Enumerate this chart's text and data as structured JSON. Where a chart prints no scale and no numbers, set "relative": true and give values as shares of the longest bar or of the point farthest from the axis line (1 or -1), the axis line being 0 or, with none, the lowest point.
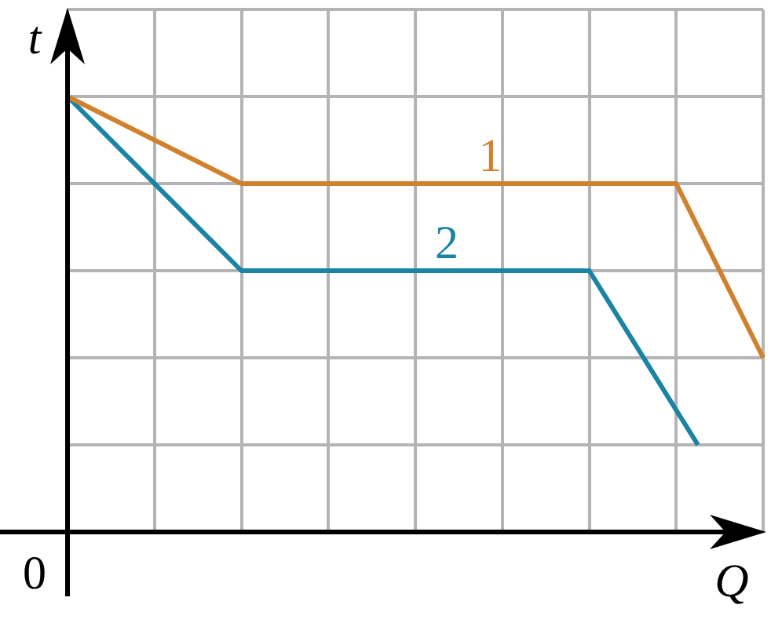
{
  "chart_data": {
    "type": "line",
    "xlabel": "Q",
    "ylabel": "t",
    "relative": true,
    "grid": true,
    "legend": false,
    "marker": "none",
    "line_style": "solid",
    "annotations": [
      "0"
    ],
    "categories": [
      null,
      null,
      null,
      null,
      null,
      null,
      null,
      null,
      null,
      null,
      null,
      null,
      null,
      null,
      null,
      null,
      null,
      null,
      null,
      null,
      null,
      null,
      null,
      null,
      null,
      null,
      null,
      null,
      null,
      null,
      null,
      null,
      null
    ],
    "series": [
      {
        "name": "1",
        "color": "#d0812e",
        "values": [
          1,
          null,
          null,
          null,
          null,
          null,
          null,
          null,
          0.8,
          null,
          null,
          null,
          null,
          null,
          null,
          null,
          null,
          null,
          null,
          null,
          null,
          null,
          null,
          null,
          null,
          null,
          null,
          null,
          0.8,
          null,
          null,
          null,
          0.4
        ]
      },
      {
        "name": "2",
        "color": "#1a84a4",
        "values": [
          1,
          null,
          null,
          null,
          null,
          null,
          null,
          null,
          0.6,
          null,
          null,
          null,
          null,
          null,
          null,
          null,
          null,
          null,
          null,
          null,
          null,
          null,
          null,
          null,
          0.6,
          null,
          null,
          null,
          null,
          0.2,
          null,
          null,
          null
        ]
      }
    ]
  }
}
